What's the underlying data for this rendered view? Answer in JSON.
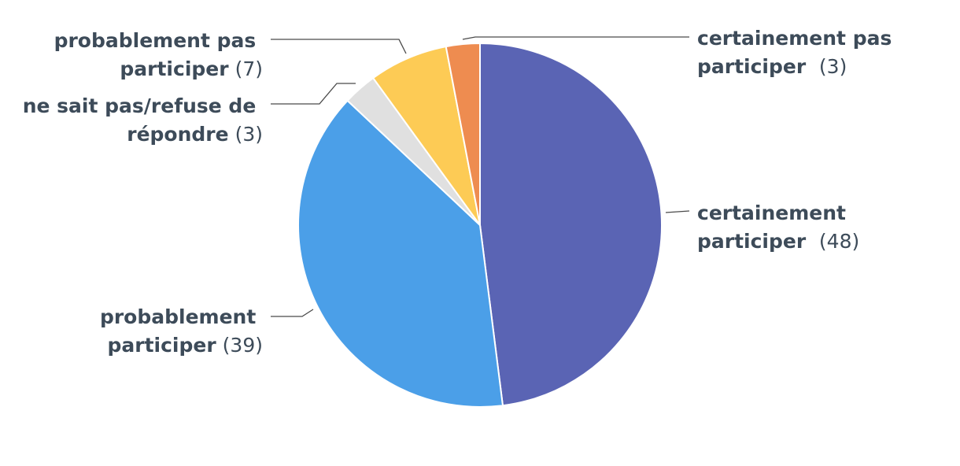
{
  "chart_data": {
    "type": "pie",
    "slices": [
      {
        "label": "certainement participer",
        "value": 48,
        "color": "#5a64b4"
      },
      {
        "label": "probablement participer",
        "value": 39,
        "color": "#4b9fe8"
      },
      {
        "label": "ne sait pas/refuse de répondre",
        "value": 3,
        "color": "#e0e0e0"
      },
      {
        "label": "probablement pas participer",
        "value": 7,
        "color": "#fdcb55"
      },
      {
        "label": "certainement pas participer",
        "value": 3,
        "color": "#ee8c50"
      }
    ],
    "labels_text": [
      {
        "line1": "certainement",
        "line2": "participer",
        "value_text": "(48)"
      },
      {
        "line1": "probablement",
        "line2": "participer",
        "value_text": "(39)"
      },
      {
        "line1": "ne sait pas/refuse de",
        "line2": "répondre",
        "value_text": "(3)"
      },
      {
        "line1": "probablement pas",
        "line2": "participer",
        "value_text": "(7)"
      },
      {
        "line1": "certainement pas",
        "line2": "participer",
        "value_text": "(3)"
      }
    ],
    "start_angle": "12 o'clock",
    "direction": "clockwise",
    "legend": "none"
  }
}
